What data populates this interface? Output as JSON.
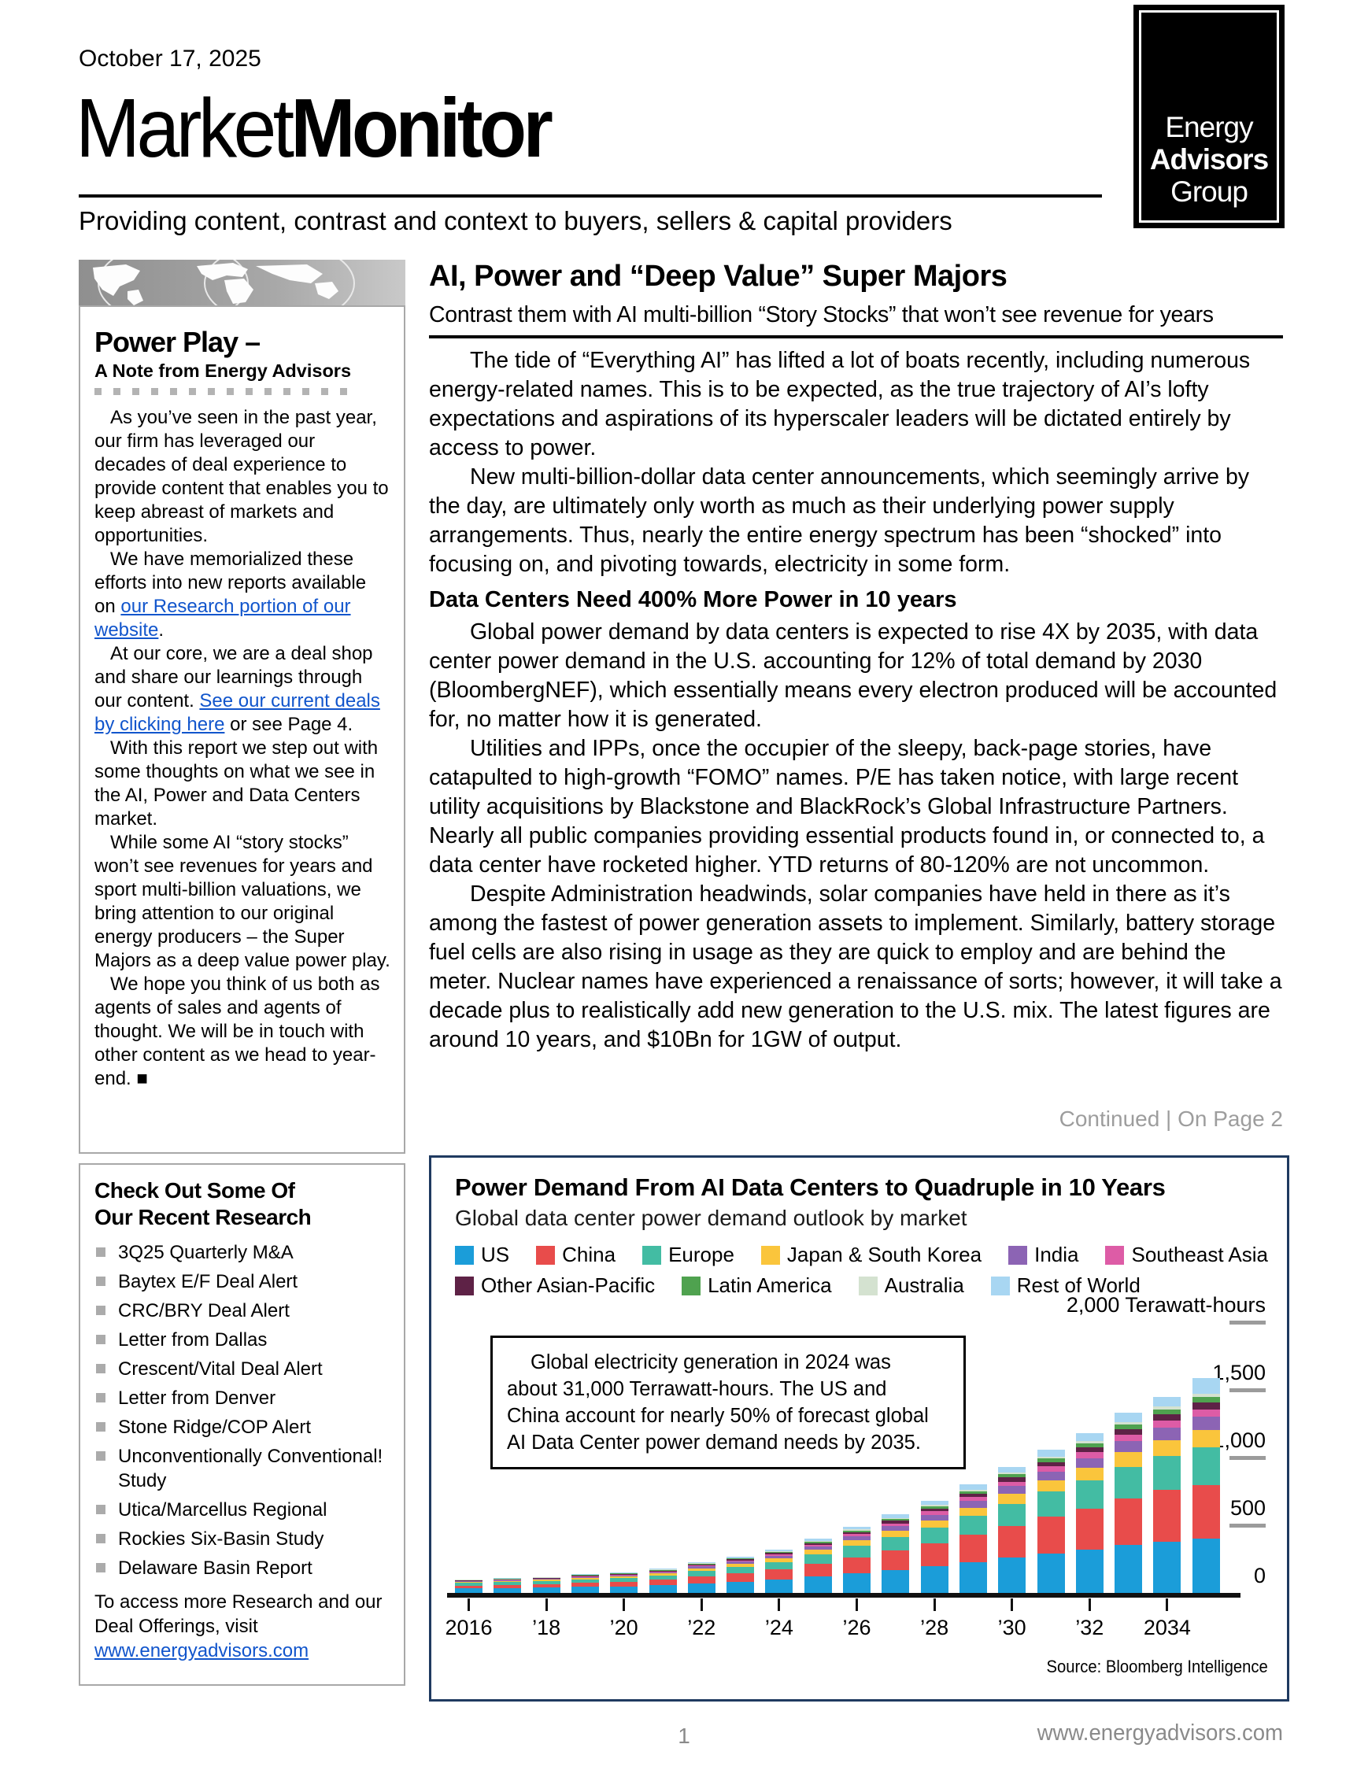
{
  "header": {
    "date": "October 17, 2025",
    "title_regular": "Market",
    "title_bold": "Monitor",
    "tagline": "Providing content, contrast and context to buyers, sellers & capital providers",
    "logo_lines": [
      "Energy",
      "Advisors",
      "Group"
    ]
  },
  "sidebar": {
    "note": {
      "heading": "Power Play –",
      "subheading": "A Note from Energy Advisors",
      "paragraphs": [
        [
          {
            "text": "As you’ve seen in the past year, our firm has leveraged our decades of deal experience to provide content that enables you to keep abreast of markets and opportunities."
          }
        ],
        [
          {
            "text": "We have memorialized these efforts into new reports available on "
          },
          {
            "text": "our Research portion of our website",
            "link": true
          },
          {
            "text": "."
          }
        ],
        [
          {
            "text": "At our core, we are a deal shop and share our learnings through our content. "
          },
          {
            "text": "See our current deals by clicking here",
            "link": true
          },
          {
            "text": " or see Page 4."
          }
        ],
        [
          {
            "text": "With this report we step out with some thoughts on what we see in the AI, Power and Data Centers market."
          }
        ],
        [
          {
            "text": "While some AI “story stocks” won’t see revenues for years and sport multi-billion valuations, we bring attention to our original energy producers – the Super Majors as a deep value power play."
          }
        ],
        [
          {
            "text": "We hope you think of us both as agents of sales and agents of thought. We will be in touch with other content as we head to year-end. ■"
          }
        ]
      ]
    },
    "research": {
      "heading_lines": [
        "Check Out Some Of",
        "Our Recent Research"
      ],
      "items": [
        "3Q25 Quarterly M&A",
        "Baytex E/F Deal Alert",
        "CRC/BRY Deal Alert",
        "Letter from Dallas",
        "Crescent/Vital Deal Alert",
        "Letter from Denver",
        "Stone Ridge/COP Alert",
        "Unconventionally Conventional! Study",
        "Utica/Marcellus Regional",
        "Rockies Six-Basin Study",
        "Delaware Basin Report"
      ],
      "footer_runs": [
        {
          "text": "To access more Research and our Deal Offerings, visit "
        },
        {
          "text": "www.energyadvisors.com",
          "link": true
        }
      ]
    }
  },
  "article": {
    "headline": "AI, Power and “Deep Value” Super Majors",
    "subhead": "Contrast them with AI multi-billion “Story Stocks” that won’t see revenue for years",
    "blocks": [
      {
        "type": "p",
        "text": "The tide of “Everything AI” has lifted a lot of boats recently, including numerous energy-related names. This is to be expected, as the true trajectory of AI’s lofty expectations and aspirations of its hyperscaler leaders will be dictated entirely by access to power."
      },
      {
        "type": "p",
        "text": "New multi-billion-dollar data center announcements, which seemingly arrive by the day, are ultimately only worth as much as their underlying power supply arrangements. Thus, nearly the entire energy spectrum has been “shocked” into focusing on, and pivoting towards, electricity in some form."
      },
      {
        "type": "h",
        "text": "Data Centers Need 400% More Power in 10 years"
      },
      {
        "type": "p",
        "text": "Global power demand by data centers is expected to rise 4X by 2035, with data center power demand in the U.S. accounting for 12% of total demand by 2030 (BloombergNEF), which essentially means every electron produced will be accounted for, no matter how it is generated."
      },
      {
        "type": "p",
        "text": "Utilities and IPPs, once the occupier of the sleepy, back-page stories, have catapulted to high-growth “FOMO” names. P/E has taken notice, with large recent utility acquisitions by Blackstone and BlackRock’s Global Infrastructure Partners. Nearly all public companies providing essential products found in, or connected to, a data center have rocketed higher. YTD returns of 80-120% are not uncommon."
      },
      {
        "type": "p",
        "text": "Despite Administration headwinds, solar companies have held in there as it’s among the fastest of power generation assets to implement. Similarly, battery storage fuel cells are also rising in usage as they are quick to employ and are behind the meter. Nuclear names have experienced a renaissance of sorts; however, it will take a decade plus to realistically add new generation to the U.S. mix. The latest figures are around 10 years, and $10Bn for 1GW of output."
      }
    ],
    "continued": "Continued  |  On Page 2"
  },
  "chart": {
    "title": "Power Demand From AI Data Centers to Quadruple in 10 Years",
    "subtitle": "Global data center power demand outlook by market",
    "annotation_text": "Global electricity generation in 2024 was\nabout 31,000 Terrawatt-hours. The US and\nChina account for nearly 50% of forecast global\nAI Data Center power demand needs by 2035.",
    "source": "Source: Bloomberg Intelligence"
  },
  "chart_data": {
    "type": "bar",
    "stacked": true,
    "title": "Power Demand From AI Data Centers to Quadruple in 10 Years",
    "subtitle": "Global data center power demand outlook by market",
    "ylabel": "Terawatt-hours",
    "ylim": [
      0,
      2000
    ],
    "grid": false,
    "legend_position": "top",
    "legend_rows": [
      6,
      4
    ],
    "x": [
      2016,
      2017,
      2018,
      2019,
      2020,
      2021,
      2022,
      2023,
      2024,
      2025,
      2026,
      2027,
      2028,
      2029,
      2030,
      2031,
      2032,
      2033,
      2034,
      2035
    ],
    "xtick_labels": [
      "2016",
      "’18",
      "’20",
      "’22",
      "’24",
      "’26",
      "’28",
      "’30",
      "’32",
      "2034"
    ],
    "yticks": [
      {
        "value": 2000,
        "label": "2,000 Terawatt-hours",
        "dash": true
      },
      {
        "value": 1500,
        "label": "1,500",
        "dash": true
      },
      {
        "value": 1000,
        "label": "1,000",
        "dash": true
      },
      {
        "value": 500,
        "label": "500",
        "dash": true
      },
      {
        "value": 0,
        "label": "0",
        "dash": false
      }
    ],
    "series": [
      {
        "name": "US",
        "color": "#1B9DD9",
        "values": [
          33,
          36,
          39,
          45,
          48,
          57,
          72,
          84,
          99,
          122,
          147,
          171,
          197,
          228,
          261,
          292,
          320,
          355,
          381,
          400
        ]
      },
      {
        "name": "China",
        "color": "#E84C4B",
        "values": [
          22,
          24,
          27,
          31,
          33,
          40,
          52,
          62,
          74,
          94,
          117,
          141,
          168,
          200,
          235,
          270,
          303,
          345,
          379,
          398
        ]
      },
      {
        "name": "Europe",
        "color": "#43BCA3",
        "values": [
          18,
          20,
          21,
          25,
          27,
          32,
          41,
          48,
          57,
          71,
          86,
          102,
          119,
          140,
          163,
          186,
          207,
          233,
          254,
          278
        ]
      },
      {
        "name": "Japan & South Korea",
        "color": "#FAC53C",
        "values": [
          8,
          9,
          10,
          11,
          12,
          14,
          18,
          21,
          25,
          31,
          38,
          45,
          53,
          62,
          73,
          84,
          94,
          106,
          116,
          127
        ]
      },
      {
        "name": "India",
        "color": "#8C64B4",
        "values": [
          5,
          6,
          6,
          7,
          8,
          10,
          13,
          15,
          18,
          23,
          29,
          35,
          41,
          49,
          57,
          65,
          73,
          82,
          90,
          99
        ]
      },
      {
        "name": "Southeast Asia",
        "color": "#DD5CA6",
        "values": [
          3,
          3,
          4,
          5,
          5,
          6,
          8,
          9,
          11,
          14,
          17,
          20,
          24,
          28,
          33,
          37,
          41,
          47,
          51,
          56
        ]
      },
      {
        "name": "Other Asian-Pacific",
        "color": "#5E2246",
        "values": [
          3,
          3,
          4,
          4,
          5,
          6,
          8,
          9,
          11,
          13,
          16,
          19,
          22,
          26,
          30,
          34,
          38,
          43,
          47,
          51
        ]
      },
      {
        "name": "Latin America",
        "color": "#4FA24F",
        "values": [
          3,
          3,
          3,
          4,
          4,
          5,
          6,
          7,
          8,
          10,
          12,
          14,
          17,
          20,
          23,
          26,
          29,
          33,
          36,
          40
        ]
      },
      {
        "name": "Australia",
        "color": "#D4E2D0",
        "values": [
          1,
          2,
          2,
          2,
          2,
          3,
          3,
          4,
          4,
          6,
          7,
          8,
          10,
          11,
          13,
          15,
          17,
          19,
          21,
          23
        ]
      },
      {
        "name": "Rest of World",
        "color": "#A8D6F2",
        "values": [
          4,
          4,
          4,
          6,
          6,
          7,
          9,
          11,
          13,
          16,
          21,
          25,
          29,
          36,
          42,
          51,
          58,
          67,
          75,
          118
        ]
      }
    ],
    "annotation": "Global electricity generation in 2024 was about 31,000 Terrawatt-hours. The US and China account for nearly 50% of forecast global AI Data Center power demand needs by 2035.",
    "source": "Source: Bloomberg Intelligence"
  },
  "footer": {
    "page_number": "1",
    "website": "www.energyadvisors.com"
  }
}
